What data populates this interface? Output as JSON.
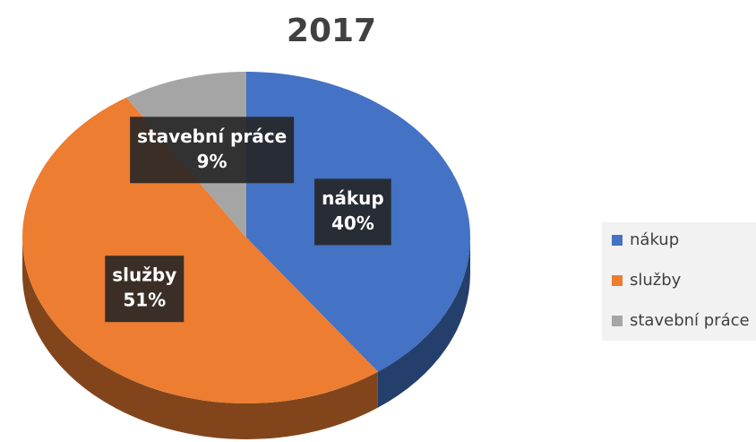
{
  "chart_data": {
    "type": "pie",
    "title": "2017",
    "categories": [
      "nákup",
      "služby",
      "stavební práce"
    ],
    "values": [
      40,
      51,
      9
    ],
    "value_labels": [
      "40%",
      "51%",
      "9%"
    ],
    "colors": [
      "#4472c4",
      "#ed7d31",
      "#a5a5a5"
    ],
    "legend": "right"
  }
}
